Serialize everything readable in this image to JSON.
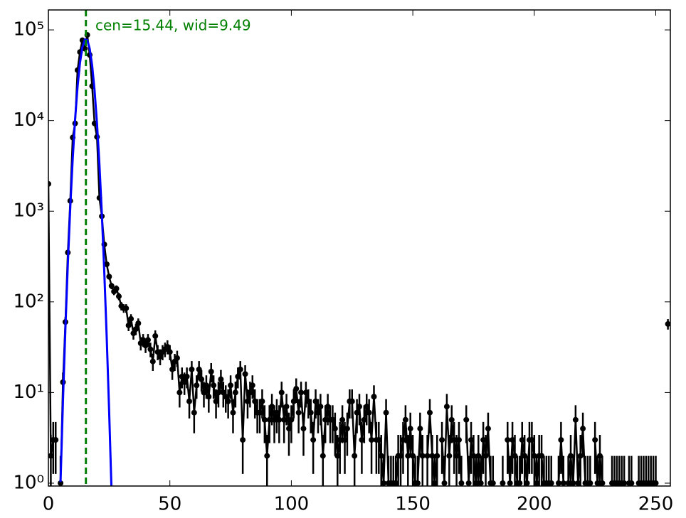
{
  "chart_data": {
    "type": "scatter",
    "log_y": true,
    "error_bars": "sqrt",
    "xlim": [
      0,
      256
    ],
    "ylim": [
      0.93,
      166000
    ],
    "xticks": [
      0,
      50,
      100,
      150,
      200,
      250
    ],
    "yticks": [
      {
        "value": 1,
        "label": "10⁰"
      },
      {
        "value": 10,
        "label": "10¹"
      },
      {
        "value": 100,
        "label": "10²"
      },
      {
        "value": 1000,
        "label": "10³"
      },
      {
        "value": 10000,
        "label": "10⁴"
      },
      {
        "value": 100000,
        "label": "10⁵"
      }
    ],
    "vline": {
      "x": 15.44,
      "color": "#008000"
    },
    "annotation": "cen=15.44, wid=9.49",
    "series": [
      {
        "color": "#000000",
        "markers": true,
        "x": [
          0,
          1,
          2,
          3,
          4,
          5,
          6,
          7,
          8,
          9,
          10,
          11,
          12,
          13,
          14,
          15,
          16,
          17,
          18,
          19,
          20,
          21,
          22,
          23,
          24,
          25,
          26,
          27,
          28,
          29,
          30,
          31,
          32,
          33,
          34,
          35,
          36,
          37,
          38,
          39,
          40,
          41,
          42,
          43,
          44,
          45,
          46,
          47,
          48,
          49,
          50,
          51,
          52,
          53,
          54,
          55,
          56,
          57,
          58,
          59,
          60,
          61,
          62,
          63,
          64,
          65,
          66,
          67,
          68,
          69,
          70,
          71,
          72,
          73,
          74,
          75,
          76,
          77,
          78,
          79,
          80,
          81,
          82,
          83,
          84,
          85,
          86,
          87,
          88,
          89,
          90,
          91,
          92,
          93,
          94,
          95,
          96,
          97,
          98,
          99,
          100,
          101,
          102,
          103,
          104,
          105,
          106,
          107,
          108,
          109,
          110,
          111,
          112,
          113,
          114,
          115,
          116,
          117,
          118,
          119,
          120,
          121,
          122,
          123,
          124,
          125,
          126,
          127,
          128,
          129,
          130,
          131,
          132,
          133,
          134,
          135,
          136,
          137,
          138,
          139,
          140,
          141,
          142,
          143,
          144,
          145,
          146,
          147,
          148,
          149,
          150,
          151,
          152,
          153,
          154,
          155,
          156,
          157,
          158,
          159,
          160,
          161,
          162,
          163,
          164,
          165,
          166,
          167,
          168,
          169,
          170,
          171,
          172,
          173,
          174,
          175,
          176,
          177,
          178,
          179,
          180,
          181,
          182,
          183,
          184,
          185,
          186,
          187,
          188,
          189,
          190,
          191,
          192,
          193,
          194,
          195,
          196,
          197,
          198,
          199,
          200,
          201,
          202,
          203,
          204,
          205,
          206,
          207,
          208,
          209,
          210,
          211,
          212,
          213,
          214,
          215,
          216,
          217,
          218,
          219,
          220,
          221,
          222,
          223,
          224,
          225,
          226,
          227,
          228,
          229,
          230,
          231,
          232,
          233,
          234,
          235,
          236,
          237,
          238,
          239,
          240,
          241,
          242,
          243,
          244,
          245,
          246,
          247,
          248,
          249,
          250,
          251,
          252,
          253,
          254,
          255
        ],
        "values": [
          2000,
          2,
          3,
          3,
          null,
          1,
          13,
          60,
          350,
          1300,
          6500,
          9300,
          36000,
          57000,
          77000,
          62000,
          88000,
          53000,
          24000,
          9300,
          6600,
          1400,
          880,
          430,
          260,
          190,
          150,
          130,
          140,
          115,
          90,
          85,
          85,
          55,
          65,
          45,
          50,
          58,
          35,
          38,
          33,
          38,
          30,
          22,
          42,
          28,
          25,
          28,
          30,
          32,
          28,
          18,
          22,
          24,
          10,
          15,
          13,
          15,
          8,
          18,
          6,
          12,
          18,
          14,
          10,
          12,
          9,
          17,
          12,
          8,
          10,
          14,
          10,
          9,
          8,
          12,
          6,
          10,
          15,
          18,
          3,
          16,
          8,
          10,
          12,
          8,
          6,
          6,
          8,
          5,
          2,
          5,
          7,
          5,
          6,
          5,
          10,
          5,
          7,
          4,
          5,
          8,
          11,
          6,
          10,
          4,
          10,
          8,
          6,
          3,
          8,
          6,
          7,
          2,
          5,
          7,
          5,
          5,
          4,
          2,
          3,
          5,
          3,
          4,
          8,
          8,
          2,
          6,
          7,
          3,
          5,
          7,
          6,
          3,
          9,
          3,
          3,
          2,
          1,
          6,
          1,
          1,
          1,
          1,
          2,
          2,
          3,
          5,
          2,
          4,
          2,
          1,
          1,
          4,
          2,
          null,
          2,
          6,
          2,
          1,
          2,
          null,
          3,
          1,
          7,
          2,
          5,
          3,
          2,
          3,
          1,
          null,
          5,
          1,
          3,
          2,
          1,
          2,
          1,
          3,
          2,
          4,
          1,
          1,
          null,
          null,
          null,
          1,
          null,
          3,
          1,
          3,
          2,
          1,
          1,
          3,
          2,
          1,
          3,
          3,
          2,
          1,
          2,
          2,
          1,
          1,
          1,
          1,
          null,
          null,
          1,
          3,
          1,
          null,
          1,
          2,
          1,
          5,
          1,
          2,
          4,
          1,
          1,
          1,
          null,
          3,
          1,
          2,
          1,
          null,
          null,
          null,
          1,
          1,
          1,
          1,
          1,
          1,
          null,
          1,
          1,
          null,
          null,
          1,
          1,
          1,
          1,
          1,
          1,
          1,
          1,
          null,
          null,
          null,
          null,
          57
        ]
      },
      {
        "color": "#0000ff",
        "markers": false,
        "x": [
          5,
          6,
          7,
          8,
          9,
          10,
          11,
          12,
          13,
          14,
          15,
          16,
          17,
          18,
          19,
          20,
          21,
          22,
          23,
          24,
          25,
          26
        ],
        "values": [
          1.03,
          8.1,
          51,
          262,
          1097,
          3750,
          10400,
          23600,
          43300,
          64600,
          78400,
          77400,
          62200,
          40700,
          21600,
          9330,
          3290,
          944,
          217,
          41,
          6.3,
          0.8
        ]
      }
    ]
  }
}
